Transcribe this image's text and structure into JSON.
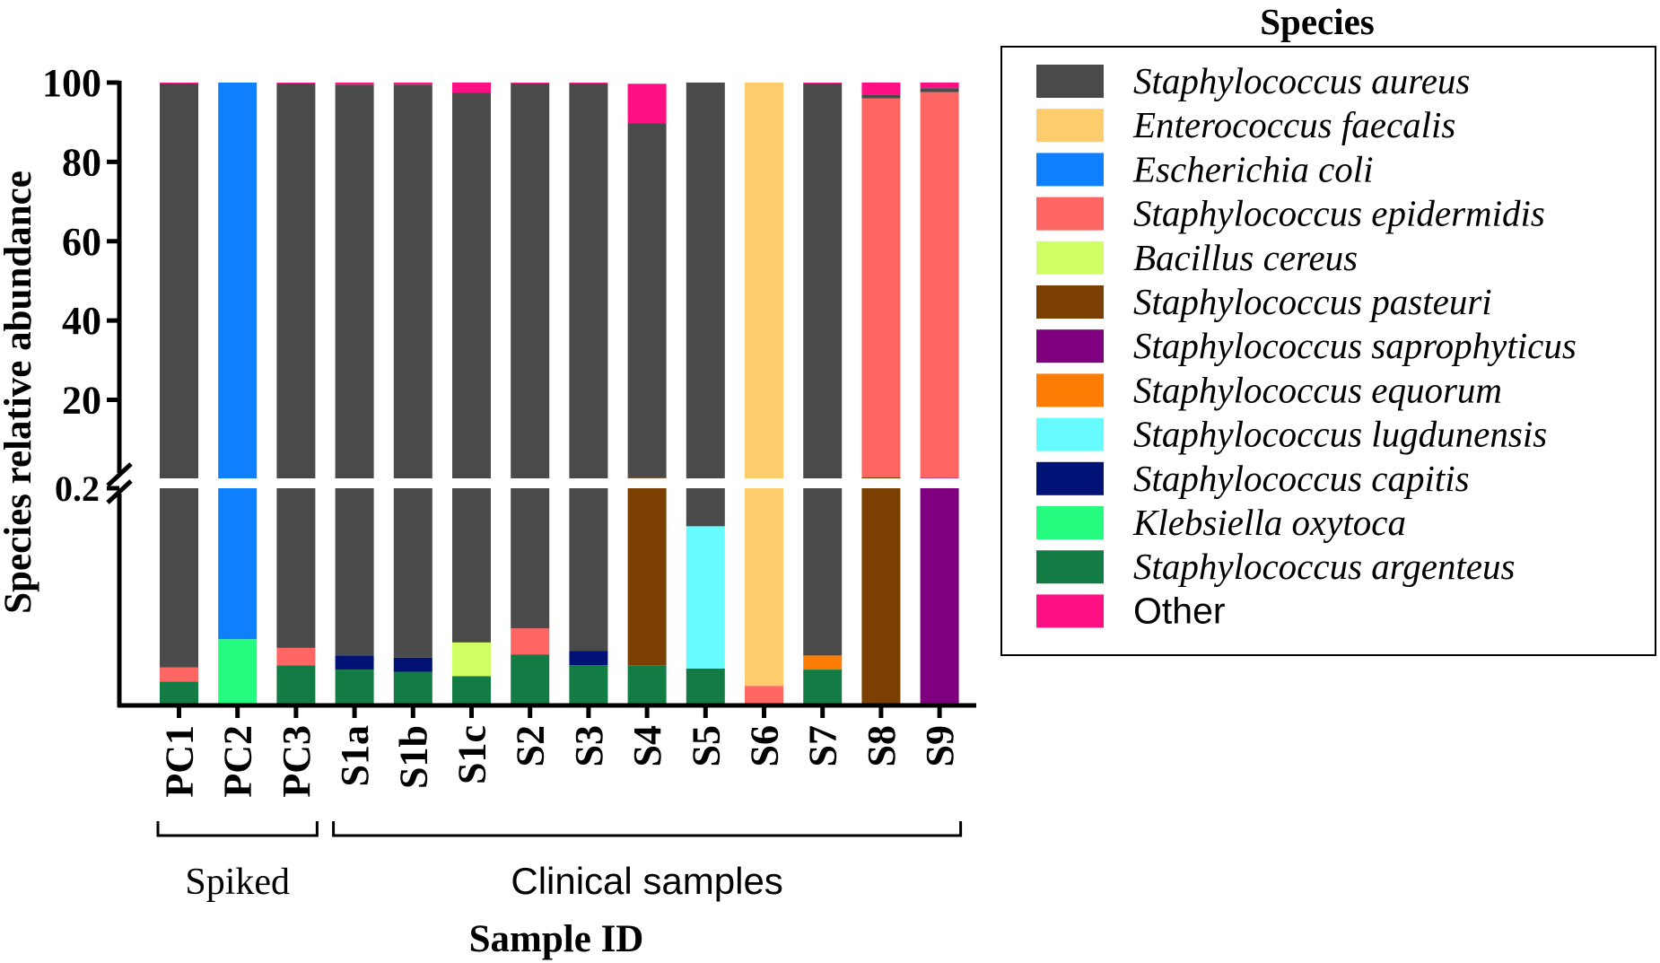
{
  "chart_data": {
    "type": "bar",
    "stacked": true,
    "ylabel": "Species relative abundance",
    "xlabel": "Sample ID",
    "yticks_upper": [
      "100",
      "80",
      "60",
      "40",
      "20"
    ],
    "ytick_break": "0.2",
    "y_break_value": 0.2,
    "ylim": [
      0,
      100
    ],
    "categories": [
      "PC1",
      "PC2",
      "PC3",
      "S1a",
      "S1b",
      "S1c",
      "S2",
      "S3",
      "S4",
      "S5",
      "S6",
      "S7",
      "S8",
      "S9"
    ],
    "groups": [
      {
        "label": "Spiked",
        "from": 0,
        "to": 2
      },
      {
        "label": "Clinical samples",
        "from": 3,
        "to": 13
      }
    ],
    "legend_title": "Species",
    "series": [
      {
        "name": "Staphylococcus argenteus",
        "color": "#137c44",
        "italic": true,
        "values": [
          0.022,
          0,
          0.037,
          0.033,
          0.031,
          0.027,
          0.047,
          0.037,
          0.037,
          0.034,
          0,
          0.033,
          0,
          0
        ]
      },
      {
        "name": "Klebsiella oxytoca",
        "color": "#25fb7e",
        "italic": true,
        "values": [
          0,
          0.061,
          0,
          0,
          0,
          0,
          0,
          0,
          0,
          0,
          0,
          0,
          0,
          0
        ]
      },
      {
        "name": "Staphylococcus capitis",
        "color": "#001276",
        "italic": true,
        "values": [
          0,
          0,
          0,
          0.013,
          0.013,
          0,
          0,
          0.013,
          0,
          0,
          0,
          0,
          0,
          0
        ]
      },
      {
        "name": "Staphylococcus lugdunensis",
        "color": "#66fbff",
        "italic": true,
        "values": [
          0,
          0,
          0,
          0,
          0,
          0,
          0,
          0,
          0,
          0.131,
          0,
          0,
          0,
          0
        ]
      },
      {
        "name": "Staphylococcus equorum",
        "color": "#fc7c04",
        "italic": true,
        "values": [
          0,
          0,
          0,
          0,
          0,
          0,
          0,
          0,
          0,
          0,
          0,
          0.013,
          0,
          0
        ]
      },
      {
        "name": "Staphylococcus saprophyticus",
        "color": "#7e007f",
        "italic": true,
        "values": [
          0,
          0,
          0,
          0,
          0,
          0,
          0,
          0,
          0,
          0,
          0,
          0,
          0,
          0.3
        ]
      },
      {
        "name": "Staphylococcus pasteuri",
        "color": "#7b3f01",
        "italic": true,
        "values": [
          0,
          0,
          0,
          0,
          0,
          0,
          0,
          0,
          0.3,
          0,
          0,
          0,
          0.5,
          0
        ]
      },
      {
        "name": "Bacillus cereus",
        "color": "#cffe65",
        "italic": true,
        "values": [
          0,
          0,
          0,
          0,
          0,
          0.031,
          0,
          0,
          0,
          0,
          0,
          0,
          0,
          0
        ]
      },
      {
        "name": "Staphylococcus epidermidis",
        "color": "#fd6663",
        "italic": true,
        "values": [
          0.013,
          0,
          0.016,
          0,
          0,
          0,
          0.024,
          0,
          0.011,
          0,
          0.018,
          0,
          95.5,
          97.3
        ]
      },
      {
        "name": "Enterococcus faecalis",
        "color": "#fdcd6d",
        "italic": true,
        "values": [
          0,
          0,
          0,
          0,
          0,
          0,
          0,
          0,
          0,
          0,
          99.98,
          0,
          0,
          0
        ]
      },
      {
        "name": "Escherichia coli",
        "color": "#0f80fd",
        "italic": true,
        "values": [
          0,
          99.94,
          0,
          0,
          0,
          0,
          0,
          0,
          0,
          0,
          0,
          0,
          0,
          0
        ]
      },
      {
        "name": "Staphylococcus aureus",
        "color": "#4a4a4a",
        "italic": true,
        "values": [
          99.76,
          0,
          99.75,
          99.45,
          99.46,
          97.44,
          99.73,
          99.75,
          89.35,
          99.83,
          0.001,
          99.75,
          1.0,
          1.0
        ]
      },
      {
        "name": "Other",
        "color": "#fe0f84",
        "italic": false,
        "values": [
          0.2,
          0,
          0.2,
          0.5,
          0.5,
          2.5,
          0.2,
          0.2,
          10.0,
          0,
          0,
          0.2,
          3.0,
          1.4
        ]
      }
    ]
  }
}
